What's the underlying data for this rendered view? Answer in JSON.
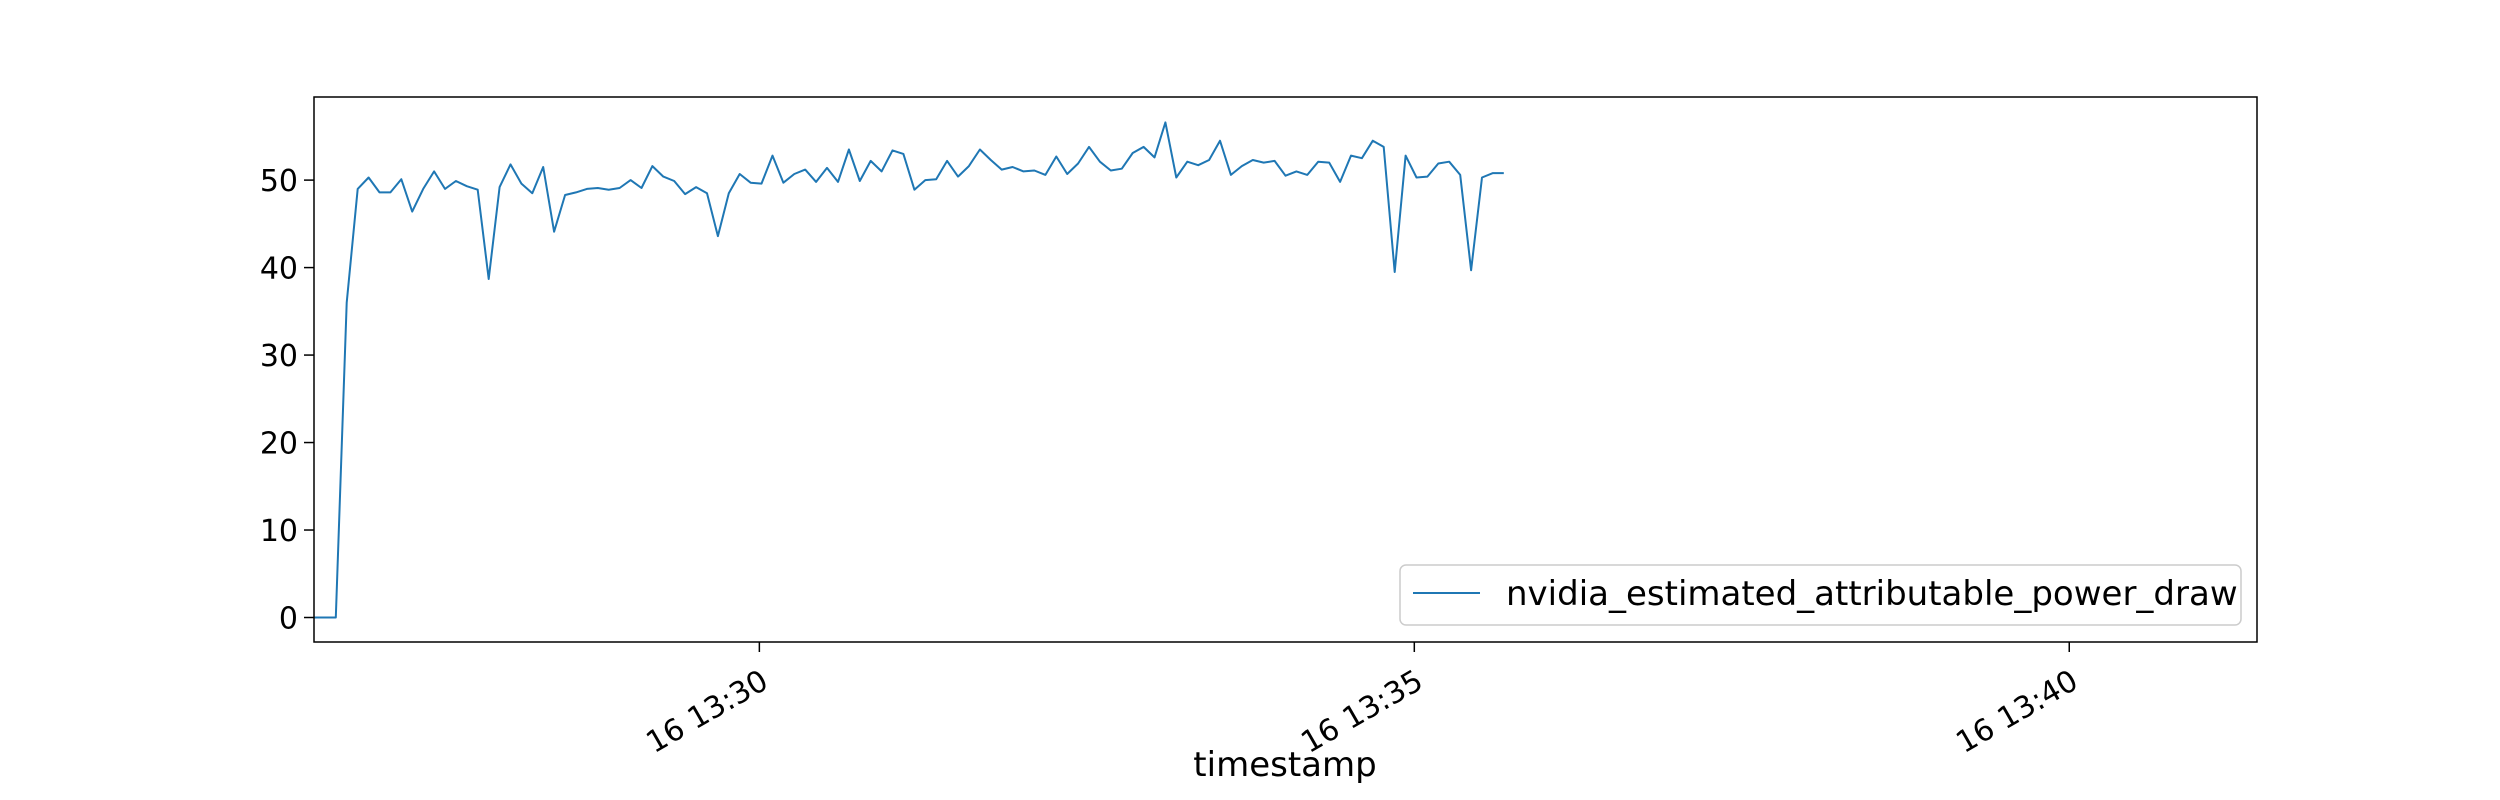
{
  "chart_data": {
    "type": "line",
    "title": "",
    "xlabel": "timestamp",
    "ylabel": "",
    "x_start": "16 13:26:36",
    "x_step_seconds": 5,
    "xlim_seconds": [
      0,
      890
    ],
    "ylim": [
      -2.8,
      59.5
    ],
    "y_ticks": [
      0,
      10,
      20,
      30,
      40,
      50
    ],
    "x_ticks": [
      {
        "label": "16 13:30",
        "seconds_from_start": 204
      },
      {
        "label": "16 13:35",
        "seconds_from_start": 504
      },
      {
        "label": "16 13:40",
        "seconds_from_start": 804
      }
    ],
    "legend": {
      "position": "lower-right",
      "entries": [
        "nvidia_estimated_attributable_power_draw"
      ]
    },
    "grid": false,
    "series": [
      {
        "name": "nvidia_estimated_attributable_power_draw",
        "color": "#1f77b4",
        "values": [
          0,
          0,
          0,
          36,
          49,
          50.3,
          48.6,
          48.6,
          50.1,
          46.4,
          49,
          51,
          49,
          49.9,
          49.3,
          48.9,
          38.7,
          49.2,
          51.8,
          49.6,
          48.5,
          51.5,
          44.1,
          48.3,
          48.6,
          49,
          49.1,
          48.9,
          49.1,
          50,
          49.1,
          51.6,
          50.4,
          49.9,
          48.4,
          49.2,
          48.5,
          43.6,
          48.5,
          50.7,
          49.7,
          49.6,
          52.8,
          49.7,
          50.7,
          51.2,
          49.8,
          51.4,
          49.8,
          53.5,
          49.9,
          52.2,
          51,
          53.4,
          53,
          48.9,
          50,
          50.1,
          52.2,
          50.4,
          51.6,
          53.5,
          52.3,
          51.2,
          51.5,
          51,
          51.1,
          50.6,
          52.7,
          50.7,
          51.9,
          53.8,
          52.1,
          51.1,
          51.3,
          53.1,
          53.8,
          52.6,
          56.6,
          50.3,
          52.1,
          51.7,
          52.3,
          54.5,
          50.6,
          51.6,
          52.3,
          52,
          52.2,
          50.5,
          51,
          50.6,
          52.1,
          52,
          49.8,
          52.8,
          52.5,
          54.5,
          53.8,
          39.5,
          52.8,
          50.3,
          50.4,
          51.9,
          52.1,
          50.6,
          39.7,
          50.3,
          50.8,
          50.8
        ]
      }
    ]
  }
}
